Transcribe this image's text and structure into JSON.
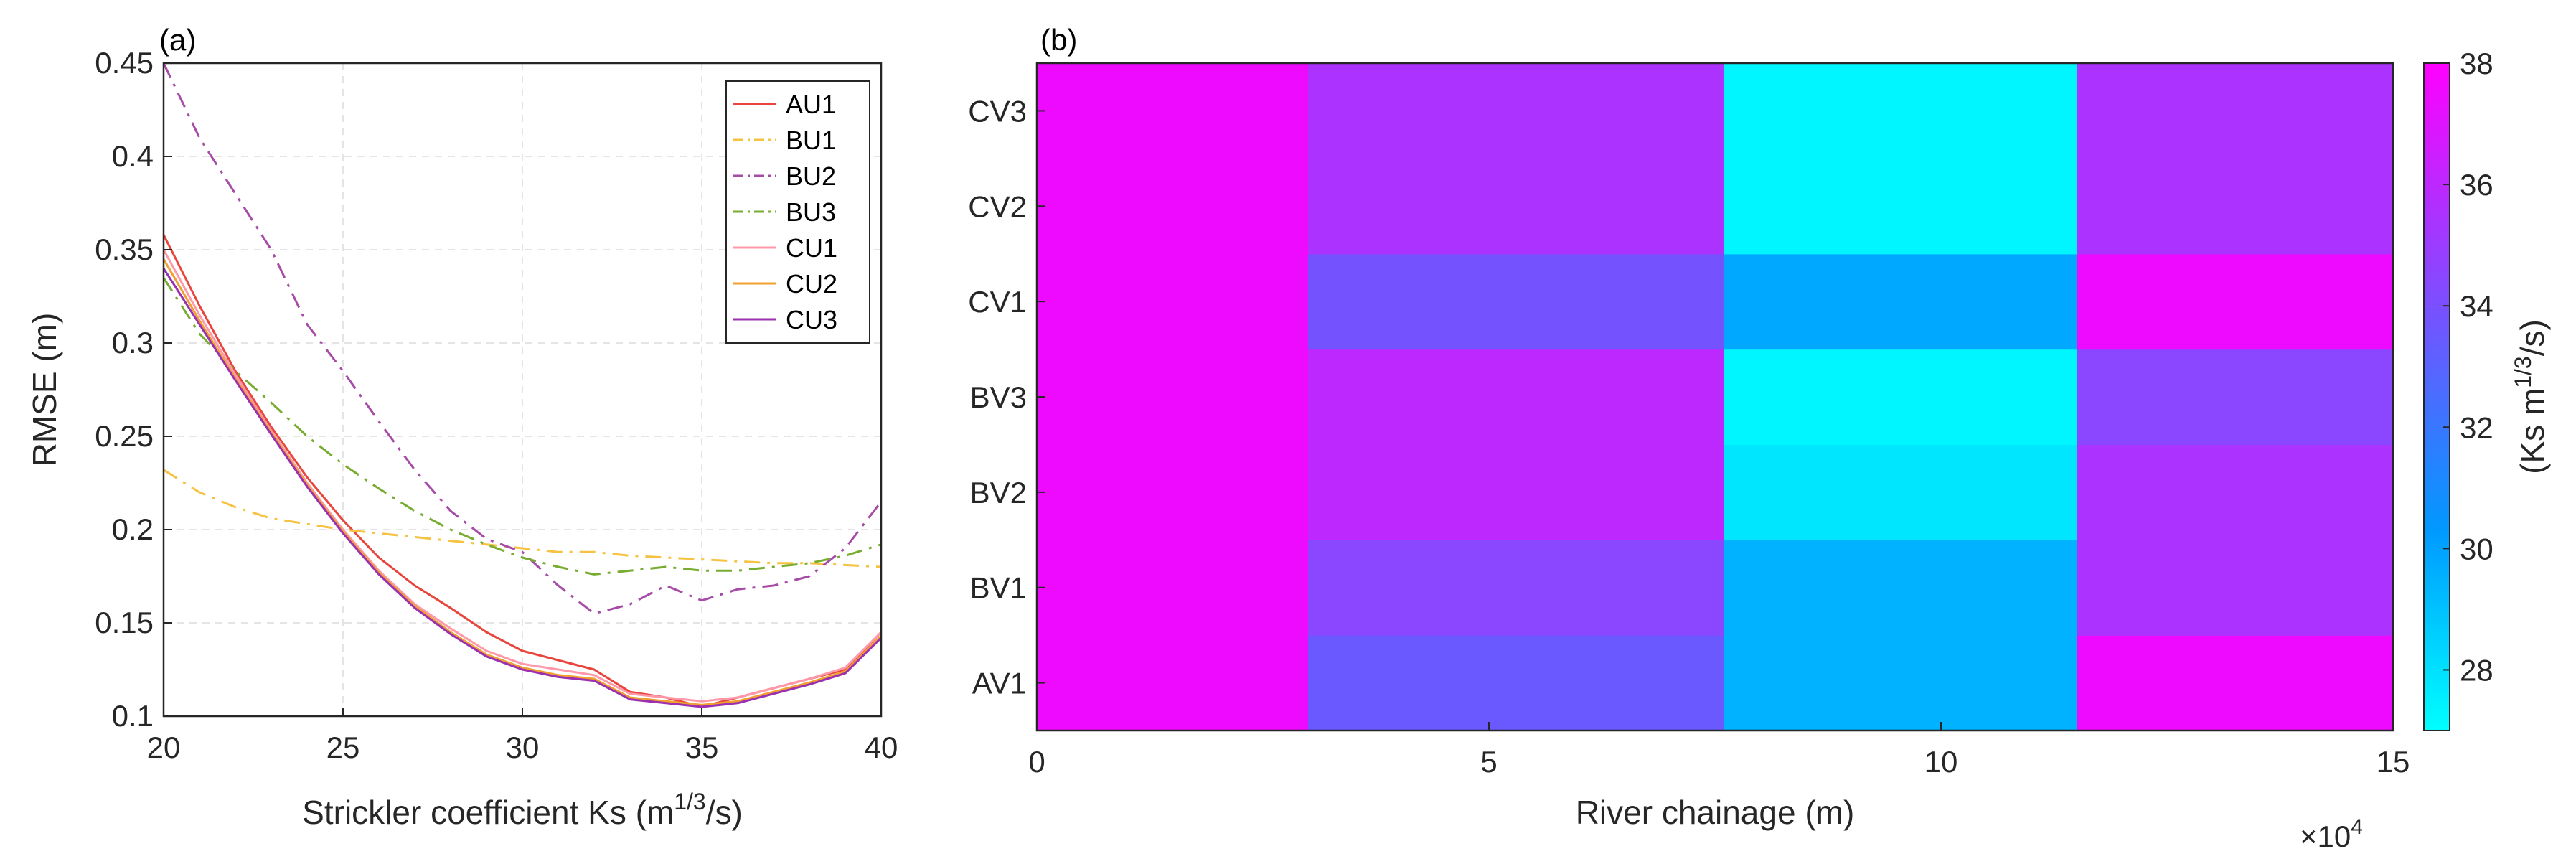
{
  "chart_data": [
    {
      "type": "line",
      "panel_label": "(a)",
      "xlabel_main": "Strickler coefficient Ks (m",
      "xlabel_sup": "1/3",
      "xlabel_end": "/s)",
      "ylabel": "RMSE (m)",
      "xlim": [
        20,
        40
      ],
      "ylim": [
        0.1,
        0.45
      ],
      "xticks": [
        20,
        25,
        30,
        35,
        40
      ],
      "yticks": [
        0.1,
        0.15,
        0.2,
        0.25,
        0.3,
        0.35,
        0.4,
        0.45
      ],
      "ytick_labels": [
        "0.1",
        "0.15",
        "0.2",
        "0.25",
        "0.3",
        "0.35",
        "0.4",
        "0.45"
      ],
      "grid": true,
      "legend_position": "top-right",
      "x": [
        20,
        21,
        22,
        23,
        24,
        25,
        26,
        27,
        28,
        29,
        30,
        31,
        32,
        33,
        34,
        35,
        36,
        37,
        38,
        39,
        40
      ],
      "series": [
        {
          "name": "AU1",
          "color": "#e8453c",
          "dash": "solid",
          "values": [
            0.358,
            0.32,
            0.285,
            0.255,
            0.228,
            0.205,
            0.185,
            0.17,
            0.158,
            0.145,
            0.135,
            0.13,
            0.125,
            0.113,
            0.11,
            0.105,
            0.11,
            0.115,
            0.12,
            0.125,
            0.145
          ]
        },
        {
          "name": "BU1",
          "color": "#f5c242",
          "dash": "dashdot",
          "values": [
            0.232,
            0.22,
            0.212,
            0.206,
            0.203,
            0.2,
            0.198,
            0.196,
            0.194,
            0.192,
            0.19,
            0.188,
            0.188,
            0.186,
            0.185,
            0.184,
            0.183,
            0.182,
            0.182,
            0.181,
            0.18
          ]
        },
        {
          "name": "BU2",
          "color": "#a64ca6",
          "dash": "dashdot",
          "values": [
            0.45,
            0.41,
            0.38,
            0.35,
            0.31,
            0.285,
            0.258,
            0.232,
            0.21,
            0.195,
            0.188,
            0.17,
            0.155,
            0.16,
            0.17,
            0.162,
            0.168,
            0.17,
            0.175,
            0.19,
            0.215
          ]
        },
        {
          "name": "BU3",
          "color": "#77ac30",
          "dash": "dashdot",
          "values": [
            0.335,
            0.305,
            0.285,
            0.268,
            0.25,
            0.235,
            0.222,
            0.21,
            0.2,
            0.192,
            0.185,
            0.18,
            0.176,
            0.178,
            0.18,
            0.178,
            0.178,
            0.18,
            0.182,
            0.186,
            0.192
          ]
        },
        {
          "name": "CU1",
          "color": "#ff99aa",
          "dash": "solid",
          "values": [
            0.35,
            0.315,
            0.283,
            0.253,
            0.225,
            0.2,
            0.178,
            0.16,
            0.147,
            0.135,
            0.128,
            0.125,
            0.122,
            0.112,
            0.11,
            0.108,
            0.11,
            0.115,
            0.12,
            0.126,
            0.145
          ]
        },
        {
          "name": "CU2",
          "color": "#f0a030",
          "dash": "solid",
          "values": [
            0.345,
            0.312,
            0.281,
            0.252,
            0.224,
            0.199,
            0.177,
            0.159,
            0.145,
            0.133,
            0.126,
            0.122,
            0.12,
            0.11,
            0.108,
            0.106,
            0.108,
            0.113,
            0.118,
            0.124,
            0.143
          ]
        },
        {
          "name": "CU3",
          "color": "#9b30b0",
          "dash": "solid",
          "values": [
            0.34,
            0.31,
            0.28,
            0.251,
            0.223,
            0.198,
            0.176,
            0.158,
            0.144,
            0.132,
            0.125,
            0.121,
            0.119,
            0.109,
            0.107,
            0.105,
            0.107,
            0.112,
            0.117,
            0.123,
            0.142
          ]
        }
      ]
    },
    {
      "type": "heatmap",
      "panel_label": "(b)",
      "xlabel": "River chainage (m)",
      "x_multiplier_base": "×10",
      "x_multiplier_exp": "4",
      "xlim": [
        0,
        15
      ],
      "xticks": [
        0,
        5,
        10,
        15
      ],
      "x_edges": [
        0,
        3,
        7.6,
        11.5,
        15
      ],
      "rows": [
        "AV1",
        "BV1",
        "BV2",
        "BV3",
        "CV1",
        "CV2",
        "CV3"
      ],
      "values": [
        [
          37.5,
          33.5,
          29.5,
          37.5
        ],
        [
          37.5,
          34.5,
          29.5,
          35.5
        ],
        [
          37.5,
          36.0,
          27.8,
          35.5
        ],
        [
          37.5,
          36.0,
          27.3,
          34.5
        ],
        [
          37.5,
          33.8,
          29.8,
          37.5
        ],
        [
          37.5,
          35.5,
          27.3,
          35.5
        ],
        [
          37.5,
          35.5,
          27.3,
          35.5
        ]
      ],
      "colorbar": {
        "label_main": "(Ks m",
        "label_sup": "1/3",
        "label_end": "/s)",
        "min": 27.0,
        "max": 38.0,
        "ticks": [
          28,
          30,
          32,
          34,
          36,
          38
        ],
        "color_low": "#00ffff",
        "color_mid": "#0099ff",
        "color_high": "#ff00ff"
      }
    }
  ]
}
